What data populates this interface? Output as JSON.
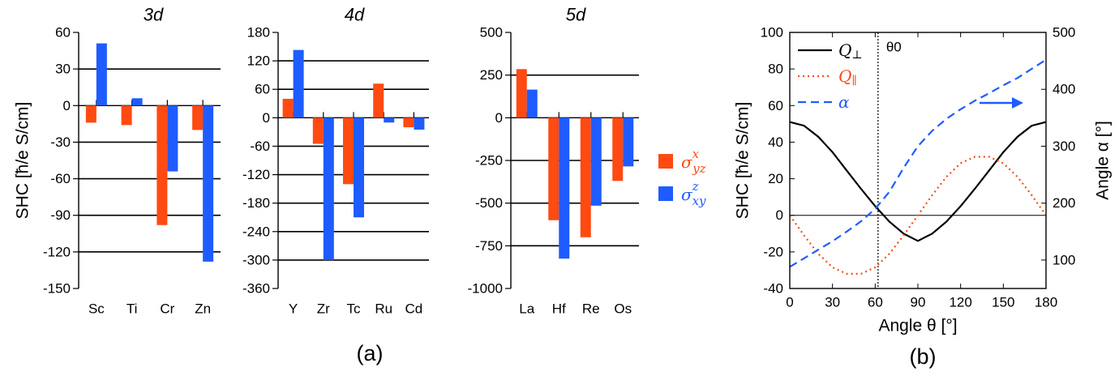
{
  "chart_data": [
    {
      "type": "bar",
      "title": "3d",
      "ylabel": "SHC [ħ/e S/cm]",
      "ylim": [
        -150,
        60
      ],
      "yticks": [
        60,
        30,
        0,
        -30,
        -60,
        -90,
        -120,
        -150
      ],
      "categories": [
        "Sc",
        "Ti",
        "Cr",
        "Zn"
      ],
      "series": [
        {
          "name": "σyz^x",
          "color": "#ff4a12",
          "values": [
            -14,
            -16,
            -98,
            -20
          ]
        },
        {
          "name": "σxy^z",
          "color": "#1f5cff",
          "values": [
            51,
            6,
            -54,
            -128
          ]
        }
      ]
    },
    {
      "type": "bar",
      "title": "4d",
      "ylim": [
        -360,
        180
      ],
      "yticks": [
        180,
        120,
        60,
        0,
        -60,
        -120,
        -180,
        -240,
        -300,
        -360
      ],
      "categories": [
        "Y",
        "Zr",
        "Tc",
        "Ru",
        "Cd"
      ],
      "series": [
        {
          "name": "σyz^x",
          "color": "#ff4a12",
          "values": [
            40,
            -55,
            -140,
            72,
            -20
          ]
        },
        {
          "name": "σxy^z",
          "color": "#1f5cff",
          "values": [
            143,
            -300,
            -210,
            -10,
            -25
          ]
        }
      ]
    },
    {
      "type": "bar",
      "title": "5d",
      "ylim": [
        -1000,
        500
      ],
      "yticks": [
        500,
        250,
        0,
        -250,
        -500,
        -750,
        -1000
      ],
      "categories": [
        "La",
        "Hf",
        "Re",
        "Os"
      ],
      "series": [
        {
          "name": "σyz^x",
          "color": "#ff4a12",
          "values": [
            285,
            -600,
            -700,
            -370
          ]
        },
        {
          "name": "σxy^z",
          "color": "#1f5cff",
          "values": [
            165,
            -825,
            -515,
            -285
          ]
        }
      ]
    },
    {
      "type": "line",
      "xlabel": "Angle θ [°]",
      "ylabel": "SHC [ħ/e S/cm]",
      "y2label": "Angle α [°]",
      "xlim": [
        0,
        180
      ],
      "ylim": [
        -40,
        100
      ],
      "y2lim": [
        50,
        500
      ],
      "xticks": [
        0,
        30,
        60,
        90,
        120,
        150,
        180
      ],
      "yticks": [
        -40,
        -20,
        0,
        20,
        40,
        60,
        80,
        100
      ],
      "y2ticks": [
        100,
        200,
        300,
        400,
        500
      ],
      "vline": {
        "x": 62,
        "label": "θ0"
      },
      "series": [
        {
          "name": "Q⊥",
          "color": "#000000",
          "style": "solid",
          "axis": "left",
          "x": [
            0,
            10,
            20,
            30,
            40,
            50,
            60,
            70,
            80,
            90,
            100,
            110,
            120,
            130,
            140,
            150,
            160,
            170,
            180
          ],
          "y": [
            51,
            49,
            43,
            34.5,
            24.5,
            14.5,
            5,
            -3.5,
            -10,
            -14,
            -10,
            -3.5,
            5,
            14.5,
            24.5,
            34.5,
            43,
            49,
            51
          ]
        },
        {
          "name": "Q∥",
          "color": "#ff4a12",
          "style": "dotted",
          "axis": "left",
          "x": [
            0,
            10,
            20,
            30,
            40,
            50,
            60,
            70,
            80,
            90,
            100,
            110,
            120,
            130,
            140,
            150,
            160,
            170,
            180
          ],
          "y": [
            0,
            -11,
            -21,
            -28.5,
            -32,
            -32,
            -28.5,
            -21,
            -11,
            0,
            11,
            21,
            28.5,
            32,
            32,
            28.5,
            21,
            11,
            0
          ]
        },
        {
          "name": "α",
          "color": "#1f5cff",
          "style": "dashed",
          "axis": "right",
          "x": [
            0,
            10,
            20,
            30,
            40,
            50,
            60,
            70,
            80,
            90,
            100,
            110,
            120,
            130,
            140,
            150,
            160,
            170,
            180
          ],
          "y": [
            88,
            103,
            118,
            133,
            150,
            168,
            190,
            220,
            262,
            300,
            327,
            348,
            365,
            380,
            393,
            407,
            420,
            436,
            452
          ]
        }
      ]
    }
  ],
  "legend": {
    "items": [
      {
        "base": "σ",
        "sub": "yz",
        "sup": "x",
        "color": "#ff4a12"
      },
      {
        "base": "σ",
        "sub": "xy",
        "sup": "z",
        "color": "#1f5cff"
      }
    ]
  },
  "line_legend": {
    "items": [
      {
        "base": "Q",
        "sub": "⊥",
        "color": "#000000",
        "style": "solid"
      },
      {
        "base": "Q",
        "sub": "∥",
        "color": "#ff4a12",
        "style": "dotted"
      },
      {
        "base": "α",
        "sub": "",
        "color": "#1f5cff",
        "style": "dashed"
      }
    ]
  },
  "panel_labels": [
    "(a)",
    "(b)"
  ]
}
